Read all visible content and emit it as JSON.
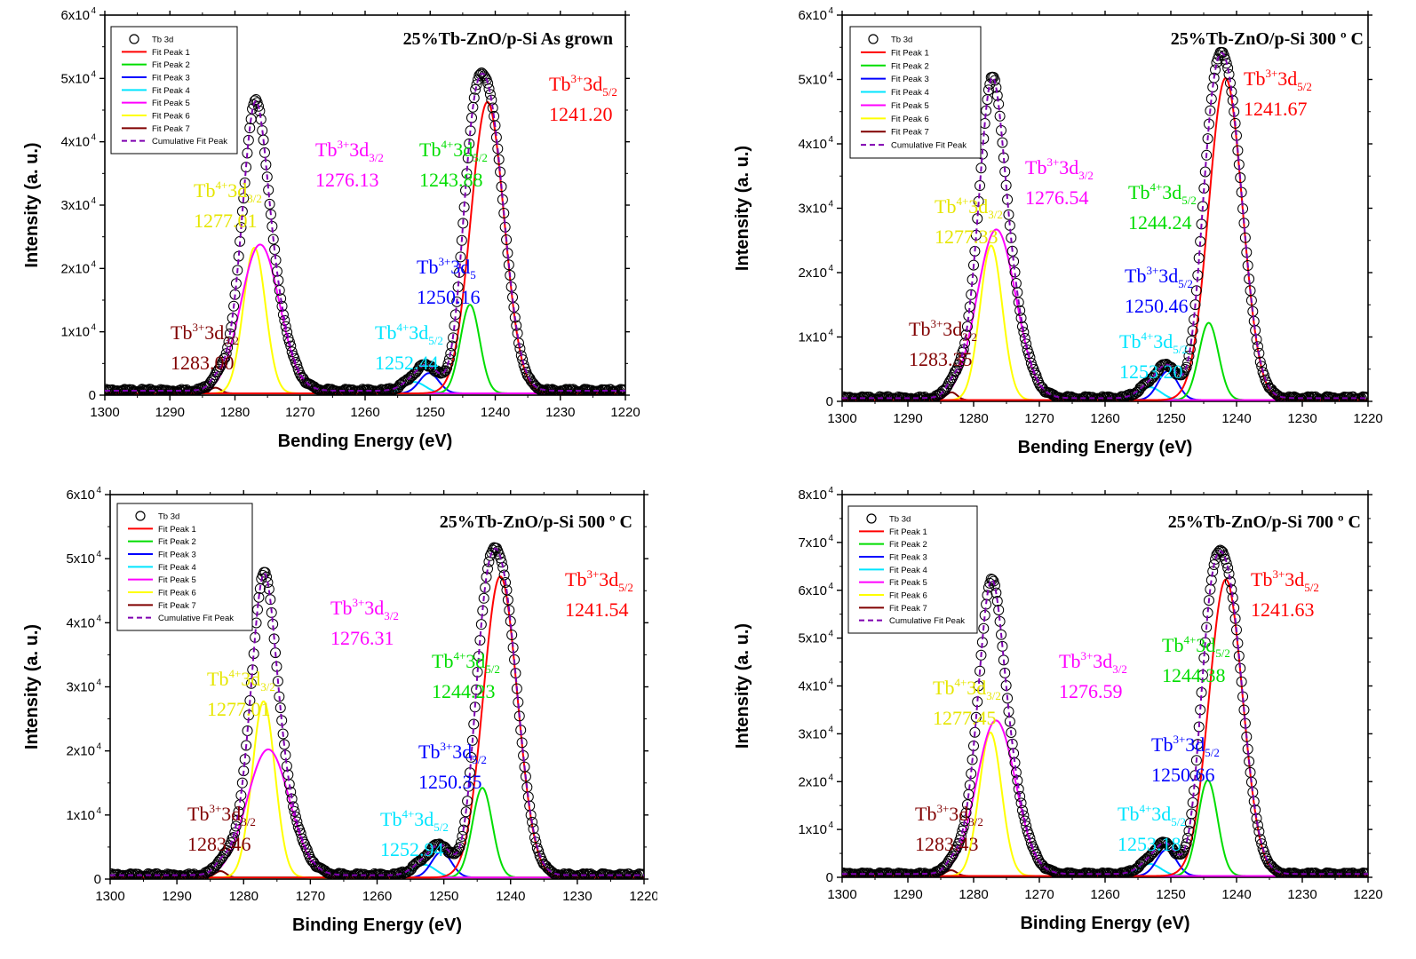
{
  "legend_entries": [
    {
      "label": "Tb 3d",
      "color": "#000000",
      "kind": "circle"
    },
    {
      "label": "Fit Peak 1",
      "color": "#ff0000",
      "kind": "line"
    },
    {
      "label": "Fit Peak 2",
      "color": "#00dd00",
      "kind": "line"
    },
    {
      "label": "Fit Peak 3",
      "color": "#0000ff",
      "kind": "line"
    },
    {
      "label": "Fit Peak 4",
      "color": "#00e5ff",
      "kind": "line"
    },
    {
      "label": "Fit Peak 5",
      "color": "#ff00ff",
      "kind": "line"
    },
    {
      "label": "Fit Peak 6",
      "color": "#ffff00",
      "kind": "line"
    },
    {
      "label": "Fit Peak 7",
      "color": "#800000",
      "kind": "line"
    },
    {
      "label": "Cumulative Fit Peak",
      "color": "#7f00b0",
      "kind": "dash"
    }
  ],
  "ylabel": "Intensity (a. u.)",
  "chart_data": [
    {
      "type": "line",
      "title": "25%Tb-ZnO/p-Si As grown",
      "xlabel": "Bending Energy (eV)",
      "xlim": [
        1300,
        1220
      ],
      "ylim": [
        0,
        60000
      ],
      "xticks": [
        "1300",
        "1290",
        "1280",
        "1270",
        "1260",
        "1250",
        "1240",
        "1230",
        "1220"
      ],
      "ytick_mant": [
        "0",
        "1x10",
        "2x10",
        "3x10",
        "4x10",
        "5x10",
        "6x10"
      ],
      "ytick_exp": "4",
      "baseline": 700,
      "peaks": [
        {
          "series": "Fit Peak 1",
          "center": 1241.2,
          "height": 46000,
          "fwhm": 6.0
        },
        {
          "series": "Fit Peak 2",
          "center": 1243.88,
          "height": 14000,
          "fwhm": 3.5
        },
        {
          "series": "Fit Peak 3",
          "center": 1250.16,
          "height": 3200,
          "fwhm": 3.5
        },
        {
          "series": "Fit Peak 4",
          "center": 1252.44,
          "height": 1800,
          "fwhm": 4.0
        },
        {
          "series": "Fit Peak 5",
          "center": 1276.13,
          "height": 23500,
          "fwhm": 7.0
        },
        {
          "series": "Fit Peak 6",
          "center": 1277.01,
          "height": 23000,
          "fwhm": 4.0
        },
        {
          "series": "Fit Peak 7",
          "center": 1283.0,
          "height": 900,
          "fwhm": 2.0
        }
      ],
      "annotations": [
        {
          "color": "#ff0000",
          "state": "3+",
          "sub": "5/2",
          "value": "1241.20"
        },
        {
          "color": "#ff00ff",
          "state": "3+",
          "sub": "3/2",
          "value": "1276.13"
        },
        {
          "color": "#00dd00",
          "state": "4+",
          "sub": "5/2",
          "value": "1243.88"
        },
        {
          "color": "#e6e600",
          "state": "4+",
          "sub": "3/2",
          "value": "1277.01"
        },
        {
          "color": "#0000ff",
          "state": "3+",
          "sub": "5",
          "value": "1250.16"
        },
        {
          "color": "#00e5ff",
          "state": "4+",
          "sub": "5/2",
          "value": "1252.44"
        },
        {
          "color": "#800000",
          "state": "3+",
          "sub": "3/2",
          "value": "1283.00"
        }
      ]
    },
    {
      "type": "line",
      "title": "25%Tb-ZnO/p-Si 300 º C",
      "xlabel": "Bending Energy (eV)",
      "xlim": [
        1300,
        1220
      ],
      "ylim": [
        0,
        60000
      ],
      "xticks": [
        "1300",
        "1290",
        "1280",
        "1270",
        "1260",
        "1250",
        "1240",
        "1230",
        "1220"
      ],
      "ytick_mant": [
        "0",
        "1x10",
        "2x10",
        "3x10",
        "4x10",
        "5x10",
        "6x10"
      ],
      "ytick_exp": "4",
      "baseline": 500,
      "peaks": [
        {
          "series": "Fit Peak 1",
          "center": 1241.67,
          "height": 50000,
          "fwhm": 6.0
        },
        {
          "series": "Fit Peak 2",
          "center": 1244.24,
          "height": 12000,
          "fwhm": 3.5
        },
        {
          "series": "Fit Peak 3",
          "center": 1250.46,
          "height": 4500,
          "fwhm": 3.5
        },
        {
          "series": "Fit Peak 4",
          "center": 1253.2,
          "height": 2000,
          "fwhm": 4.0
        },
        {
          "series": "Fit Peak 5",
          "center": 1276.54,
          "height": 26500,
          "fwhm": 7.0
        },
        {
          "series": "Fit Peak 6",
          "center": 1277.33,
          "height": 24000,
          "fwhm": 4.0
        },
        {
          "series": "Fit Peak 7",
          "center": 1283.35,
          "height": 1200,
          "fwhm": 2.0
        }
      ],
      "annotations": [
        {
          "color": "#ff0000",
          "state": "3+",
          "sub": "5/2",
          "value": "1241.67"
        },
        {
          "color": "#ff00ff",
          "state": "3+",
          "sub": "3/2",
          "value": "1276.54"
        },
        {
          "color": "#00dd00",
          "state": "4+",
          "sub": "5/2",
          "value": "1244.24"
        },
        {
          "color": "#e6e600",
          "state": "4+",
          "sub": "3/2",
          "value": "1277.33"
        },
        {
          "color": "#0000ff",
          "state": "3+",
          "sub": "5/2",
          "value": "1250.46"
        },
        {
          "color": "#00e5ff",
          "state": "4+",
          "sub": "5/2",
          "value": "1253.20"
        },
        {
          "color": "#800000",
          "state": "3+",
          "sub": "3/2",
          "value": "1283.35"
        }
      ]
    },
    {
      "type": "line",
      "title": "25%Tb-ZnO/p-Si 500 º C",
      "xlabel": "Binding Energy (eV)",
      "xlim": [
        1300,
        1220
      ],
      "ylim": [
        0,
        60000
      ],
      "xticks": [
        "1300",
        "1290",
        "1280",
        "1270",
        "1260",
        "1250",
        "1240",
        "1230",
        "1220"
      ],
      "ytick_mant": [
        "0",
        "1x10",
        "2x10",
        "3x10",
        "4x10",
        "5x10",
        "6x10"
      ],
      "ytick_exp": "4",
      "baseline": 600,
      "peaks": [
        {
          "series": "Fit Peak 1",
          "center": 1241.54,
          "height": 47000,
          "fwhm": 6.0
        },
        {
          "series": "Fit Peak 2",
          "center": 1244.23,
          "height": 14000,
          "fwhm": 3.5
        },
        {
          "series": "Fit Peak 3",
          "center": 1250.35,
          "height": 4000,
          "fwhm": 3.5
        },
        {
          "series": "Fit Peak 4",
          "center": 1252.94,
          "height": 2000,
          "fwhm": 4.0
        },
        {
          "series": "Fit Peak 5",
          "center": 1276.31,
          "height": 20000,
          "fwhm": 7.5
        },
        {
          "series": "Fit Peak 6",
          "center": 1277.01,
          "height": 27500,
          "fwhm": 4.0
        },
        {
          "series": "Fit Peak 7",
          "center": 1283.46,
          "height": 1000,
          "fwhm": 2.0
        }
      ],
      "annotations": [
        {
          "color": "#ff0000",
          "state": "3+",
          "sub": "5/2",
          "value": "1241.54"
        },
        {
          "color": "#ff00ff",
          "state": "3+",
          "sub": "3/2",
          "value": "1276.31"
        },
        {
          "color": "#00dd00",
          "state": "4+",
          "sub": "5/2",
          "value": "1244.23"
        },
        {
          "color": "#e6e600",
          "state": "4+",
          "sub": "3/2",
          "value": "1277.01"
        },
        {
          "color": "#0000ff",
          "state": "3+",
          "sub": "5/2",
          "value": "1250.35"
        },
        {
          "color": "#00e5ff",
          "state": "4+",
          "sub": "5/2",
          "value": "1252.94"
        },
        {
          "color": "#800000",
          "state": "3+",
          "sub": "3/2",
          "value": "1283.46"
        }
      ]
    },
    {
      "type": "line",
      "title": "25%Tb-ZnO/p-Si 700 º C",
      "xlabel": "Binding Energy (eV)",
      "xlim": [
        1300,
        1220
      ],
      "ylim": [
        0,
        80000
      ],
      "xticks": [
        "1300",
        "1290",
        "1280",
        "1270",
        "1260",
        "1250",
        "1240",
        "1230",
        "1220"
      ],
      "ytick_mant": [
        "0",
        "1x10",
        "2x10",
        "3x10",
        "4x10",
        "5x10",
        "6x10",
        "7x10",
        "8x10"
      ],
      "ytick_exp": "4",
      "baseline": 700,
      "peaks": [
        {
          "series": "Fit Peak 1",
          "center": 1241.63,
          "height": 62000,
          "fwhm": 6.0
        },
        {
          "series": "Fit Peak 2",
          "center": 1244.38,
          "height": 20000,
          "fwhm": 3.5
        },
        {
          "series": "Fit Peak 3",
          "center": 1250.66,
          "height": 5500,
          "fwhm": 3.5
        },
        {
          "series": "Fit Peak 4",
          "center": 1253.18,
          "height": 2500,
          "fwhm": 4.0
        },
        {
          "series": "Fit Peak 5",
          "center": 1276.59,
          "height": 32500,
          "fwhm": 7.0
        },
        {
          "series": "Fit Peak 6",
          "center": 1277.45,
          "height": 30000,
          "fwhm": 4.0
        },
        {
          "series": "Fit Peak 7",
          "center": 1283.43,
          "height": 1200,
          "fwhm": 2.0
        }
      ],
      "annotations": [
        {
          "color": "#ff0000",
          "state": "3+",
          "sub": "5/2",
          "value": "1241.63"
        },
        {
          "color": "#ff00ff",
          "state": "3+",
          "sub": "3/2",
          "value": "1276.59"
        },
        {
          "color": "#00dd00",
          "state": "4+",
          "sub": "5/2",
          "value": "1244.38"
        },
        {
          "color": "#e6e600",
          "state": "4+",
          "sub": "3/2",
          "value": "1277.45"
        },
        {
          "color": "#0000ff",
          "state": "3+",
          "sub": "5/2",
          "value": "1250.66"
        },
        {
          "color": "#00e5ff",
          "state": "4+",
          "sub": "5/2",
          "value": "1253.18"
        },
        {
          "color": "#800000",
          "state": "3+",
          "sub": "3/2",
          "value": "1283.43"
        }
      ]
    }
  ]
}
